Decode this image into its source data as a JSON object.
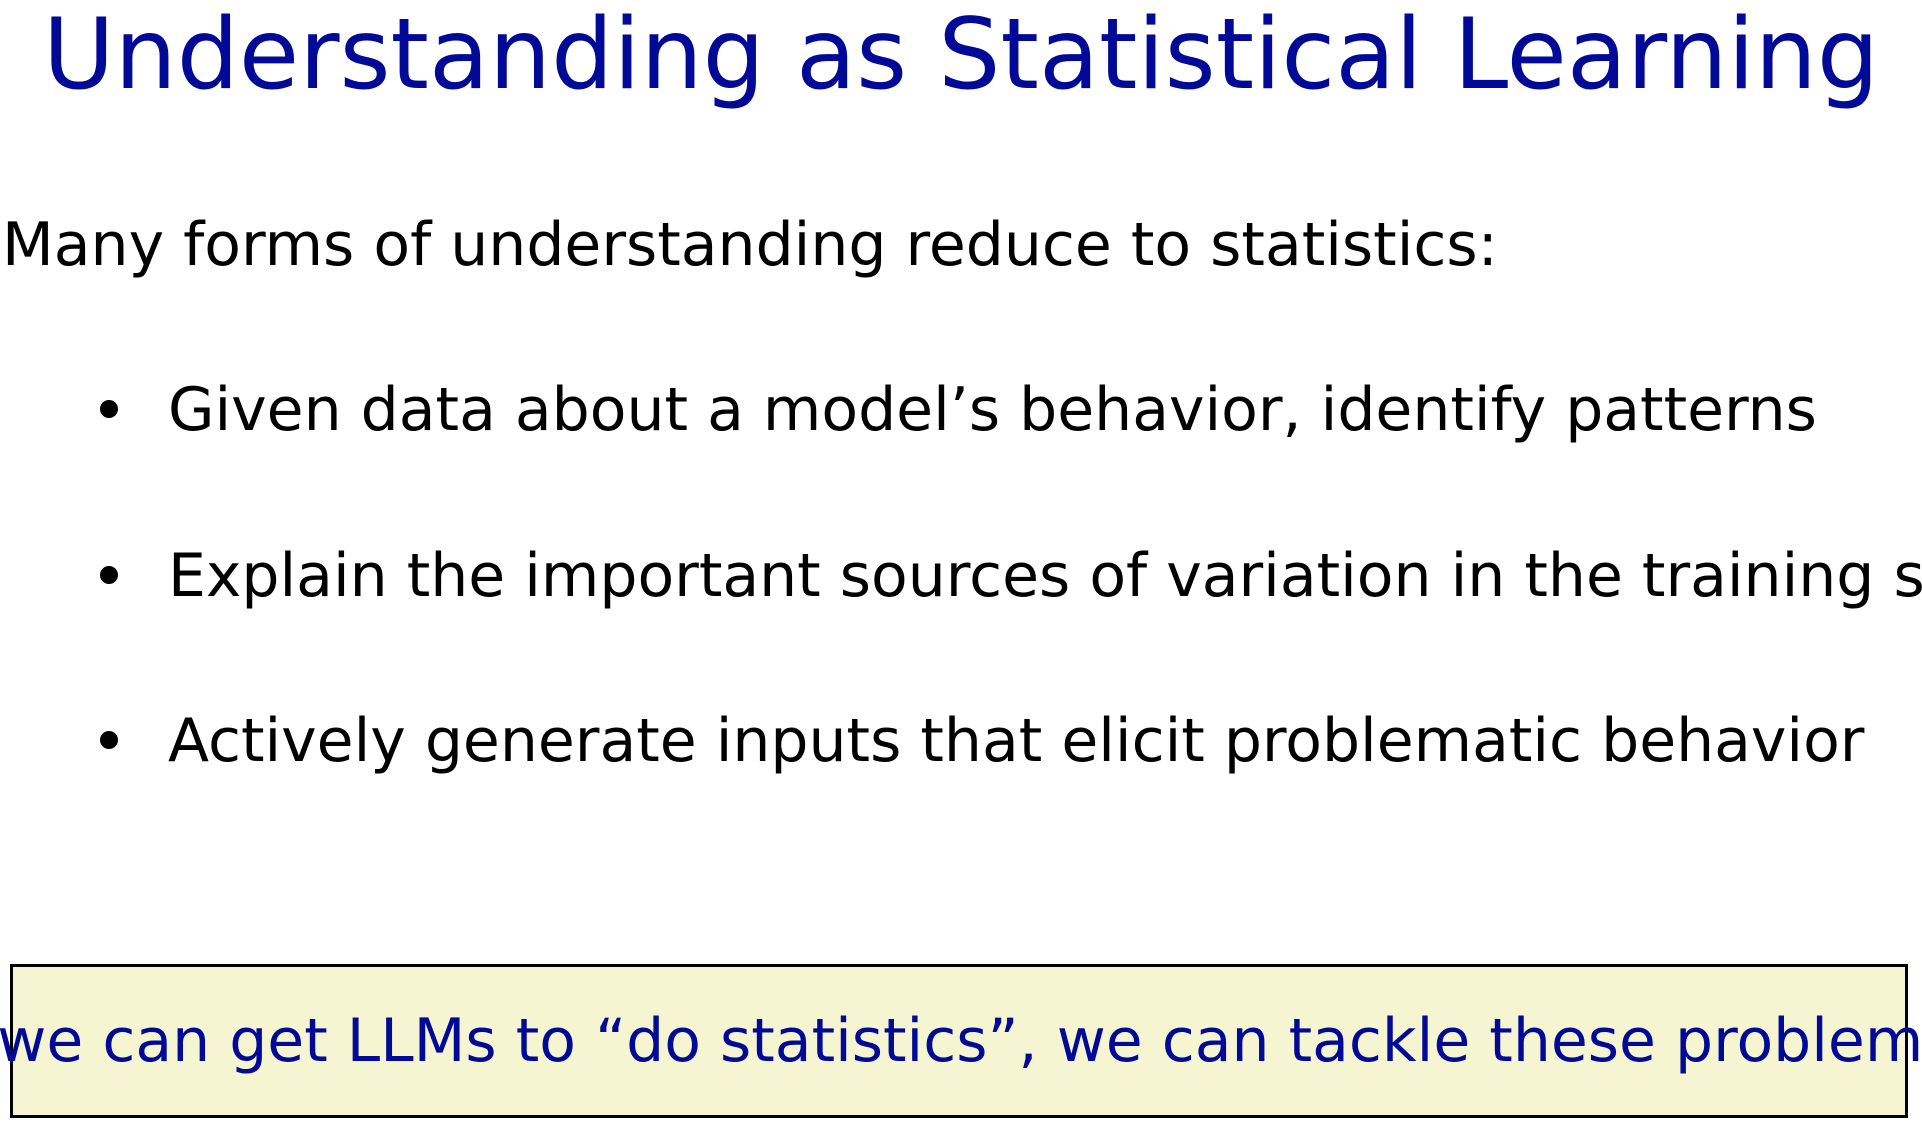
{
  "slide": {
    "title": "Understanding as Statistical Learning",
    "intro": "Many forms of understanding reduce to statistics:",
    "bullets": [
      "Given data about a model’s behavior, identify patterns",
      "Explain the important sources of variation in the training set",
      "Actively generate inputs that elicit problematic behavior"
    ],
    "callout": "If we can get LLMs to “do statistics”, we can tackle these problems!"
  },
  "colors": {
    "title": "#000a96",
    "callout_text": "#000a96",
    "callout_background": "#f5f5d2"
  }
}
